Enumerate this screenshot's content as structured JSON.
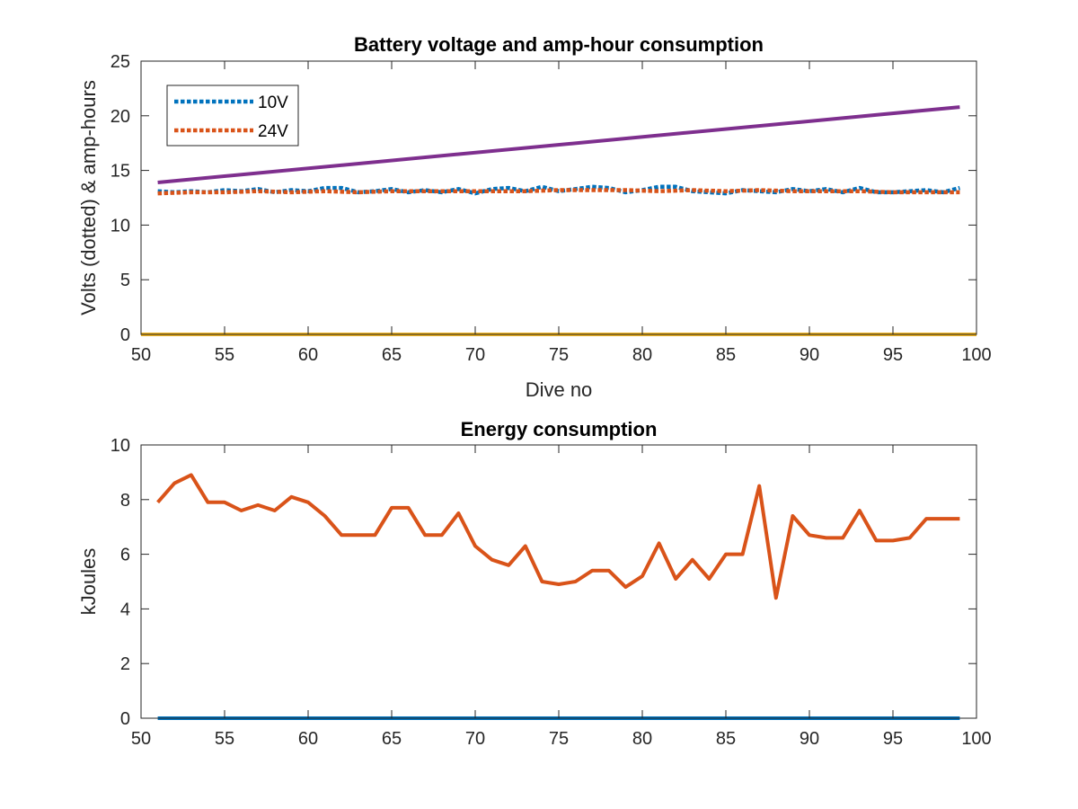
{
  "chart_data": [
    {
      "type": "line",
      "title": "Battery voltage and amp-hour consumption",
      "xlabel": "Dive no",
      "ylabel": "Volts (dotted) & amp-hours",
      "xlim": [
        50,
        100
      ],
      "ylim": [
        0,
        25
      ],
      "xticks": [
        50,
        55,
        60,
        65,
        70,
        75,
        80,
        85,
        90,
        95,
        100
      ],
      "yticks": [
        0,
        5,
        10,
        15,
        20,
        25
      ],
      "grid": false,
      "legend_position": "top-left",
      "colors": [
        "#0072BD",
        "#D95319",
        "#7E2F8E",
        "#EDB120"
      ],
      "series": [
        {
          "name": "10V",
          "style": "dotted",
          "color": "#0072BD",
          "x": [
            51,
            52,
            53,
            54,
            55,
            56,
            57,
            58,
            59,
            60,
            61,
            62,
            63,
            64,
            65,
            66,
            67,
            68,
            69,
            70,
            71,
            72,
            73,
            74,
            75,
            76,
            77,
            78,
            79,
            80,
            81,
            82,
            83,
            84,
            85,
            86,
            87,
            88,
            89,
            90,
            91,
            92,
            93,
            94,
            95,
            96,
            97,
            98,
            99
          ],
          "y": [
            13.1,
            13.0,
            13.1,
            13.0,
            13.2,
            13.1,
            13.3,
            13.0,
            13.2,
            13.1,
            13.4,
            13.4,
            13.0,
            13.1,
            13.3,
            13.0,
            13.2,
            13.0,
            13.3,
            12.9,
            13.3,
            13.4,
            13.1,
            13.5,
            13.1,
            13.3,
            13.5,
            13.4,
            13.0,
            13.2,
            13.5,
            13.5,
            13.1,
            13.0,
            12.9,
            13.2,
            13.1,
            13.0,
            13.3,
            13.1,
            13.3,
            13.0,
            13.4,
            13.0,
            13.0,
            13.1,
            13.2,
            13.0,
            13.4
          ]
        },
        {
          "name": "24V",
          "style": "dotted",
          "color": "#D95319",
          "x": [
            51,
            53,
            55,
            57,
            59,
            61,
            63,
            65,
            67,
            69,
            71,
            73,
            75,
            77,
            79,
            81,
            83,
            85,
            87,
            89,
            91,
            93,
            95,
            97,
            99
          ],
          "y": [
            12.9,
            13.0,
            13.0,
            13.1,
            13.0,
            13.1,
            13.0,
            13.1,
            13.1,
            13.1,
            13.1,
            13.1,
            13.2,
            13.2,
            13.2,
            13.1,
            13.2,
            13.1,
            13.2,
            13.1,
            13.1,
            13.1,
            13.0,
            13.0,
            13.0
          ]
        },
        {
          "style": "solid",
          "color": "#7E2F8E",
          "x": [
            51,
            99
          ],
          "y": [
            13.9,
            20.8
          ]
        },
        {
          "style": "solid",
          "color": "#EDB120",
          "x": [
            50,
            100
          ],
          "y": [
            0,
            0
          ]
        }
      ]
    },
    {
      "type": "line",
      "title": "Energy consumption",
      "xlabel": "",
      "ylabel": "kJoules",
      "xlim": [
        50,
        100
      ],
      "ylim": [
        0,
        10
      ],
      "xticks": [
        50,
        55,
        60,
        65,
        70,
        75,
        80,
        85,
        90,
        95,
        100
      ],
      "yticks": [
        0,
        2,
        4,
        6,
        8,
        10
      ],
      "grid": false,
      "colors": [
        "#0072BD",
        "#D95319"
      ],
      "series": [
        {
          "style": "solid",
          "color": "#0072BD",
          "x": [
            51,
            99
          ],
          "y": [
            0,
            0
          ]
        },
        {
          "style": "solid",
          "color": "#D95319",
          "x": [
            51,
            52,
            53,
            54,
            55,
            56,
            57,
            58,
            59,
            60,
            61,
            62,
            63,
            64,
            65,
            66,
            67,
            68,
            69,
            70,
            71,
            72,
            73,
            74,
            75,
            76,
            77,
            78,
            79,
            80,
            81,
            82,
            83,
            84,
            85,
            86,
            87,
            88,
            89,
            90,
            91,
            92,
            93,
            94,
            95,
            96,
            97,
            98,
            99
          ],
          "y": [
            7.9,
            8.6,
            8.9,
            7.9,
            7.9,
            7.6,
            7.8,
            7.6,
            8.1,
            7.9,
            7.4,
            6.7,
            6.7,
            6.7,
            7.7,
            7.7,
            6.7,
            6.7,
            7.5,
            6.3,
            5.8,
            5.6,
            6.3,
            5.0,
            4.9,
            5.0,
            5.4,
            5.4,
            4.8,
            5.2,
            6.4,
            5.1,
            5.8,
            5.1,
            6.0,
            6.0,
            8.5,
            4.4,
            7.4,
            6.7,
            6.6,
            6.6,
            7.6,
            6.5,
            6.5,
            6.6,
            7.3,
            7.3,
            7.3
          ]
        }
      ]
    }
  ]
}
